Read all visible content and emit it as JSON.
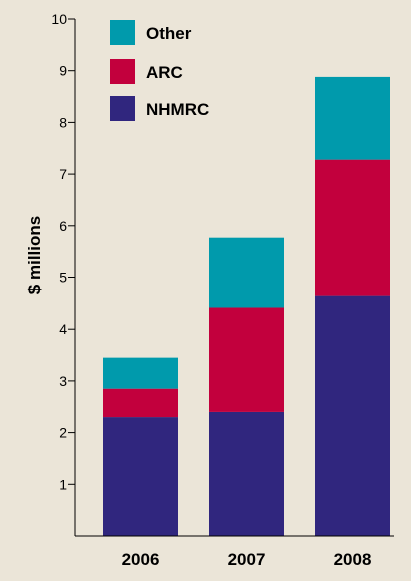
{
  "chart_data": {
    "type": "bar",
    "stacked": true,
    "categories": [
      "2006",
      "2007",
      "2008"
    ],
    "series": [
      {
        "name": "NHMRC",
        "values": [
          2.3,
          2.4,
          4.65
        ]
      },
      {
        "name": "ARC",
        "values": [
          0.55,
          2.02,
          2.63
        ]
      },
      {
        "name": "Other",
        "values": [
          0.6,
          1.35,
          1.6
        ]
      }
    ],
    "title": "",
    "xlabel": "",
    "ylabel": "$ millions",
    "ylim": [
      0,
      10
    ],
    "yticks": [
      "1",
      "2",
      "3",
      "4",
      "5",
      "6",
      "7",
      "8",
      "9",
      "10"
    ],
    "grid": false,
    "legend_position": "top-left",
    "legend_order": [
      "Other",
      "ARC",
      "NHMRC"
    ],
    "colors": {
      "NHMRC": "#30267e",
      "ARC": "#c2003d",
      "Other": "#009aac"
    },
    "background": "#ebe5d8"
  }
}
